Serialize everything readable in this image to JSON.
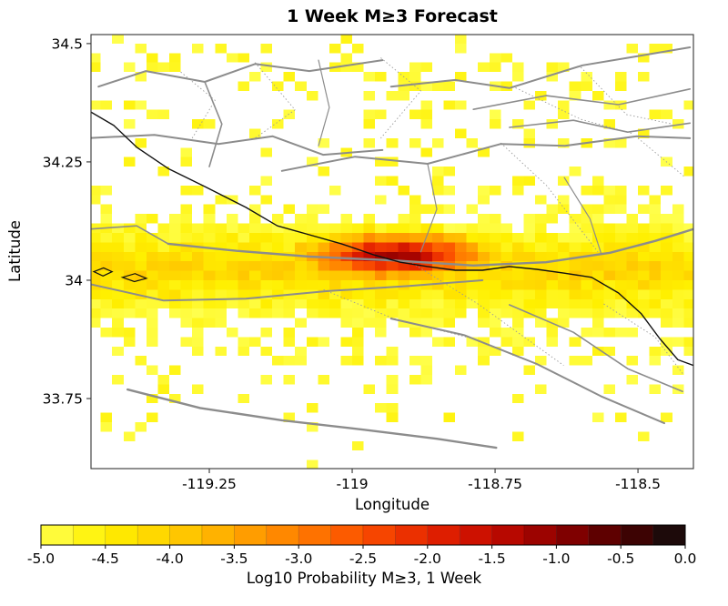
{
  "title": "1 Week M≥3 Forecast",
  "axes": {
    "xlabel": "Longitude",
    "ylabel": "Latitude",
    "xlim": [
      -119.457,
      -118.403
    ],
    "ylim": [
      33.602,
      34.519
    ],
    "x_tick_values": [
      -119.25,
      -119,
      -118.75,
      -118.5
    ],
    "x_tick_labels": [
      "-119.25",
      "-119",
      "-118.75",
      "-118.5"
    ],
    "y_tick_values": [
      34.5,
      34.25,
      34,
      33.75
    ],
    "y_tick_labels": [
      "34.5",
      "34.25",
      "34",
      "33.75"
    ]
  },
  "colorbar": {
    "label": "Log10 Probability M≥3, 1 Week",
    "range": [
      -5,
      0
    ],
    "segments": 20,
    "tick_values": [
      -5,
      -4.5,
      -4,
      -3.5,
      -3,
      -2.5,
      -2,
      -1.5,
      -1,
      -0.5,
      0
    ],
    "tick_labels": [
      "-5.0",
      "-4.5",
      "-4.0",
      "-3.5",
      "-3.0",
      "-2.5",
      "-2.0",
      "-1.5",
      "-1.0",
      "-0.5",
      "0.0"
    ],
    "stops": [
      [
        -5.0,
        "#ffff4d"
      ],
      [
        -4.5,
        "#fff000"
      ],
      [
        -4.0,
        "#ffd000"
      ],
      [
        -3.5,
        "#ffa800"
      ],
      [
        -3.0,
        "#ff7d00"
      ],
      [
        -2.5,
        "#fb4f00"
      ],
      [
        -2.0,
        "#e62500"
      ],
      [
        -1.5,
        "#c40a00"
      ],
      [
        -1.0,
        "#8f0000"
      ],
      [
        -0.5,
        "#4d0000"
      ],
      [
        0.0,
        "#0d0d0d"
      ]
    ]
  },
  "chart_data": {
    "type": "heatmap",
    "title": "1 Week M≥3 Forecast",
    "xlabel": "Longitude",
    "ylabel": "Latitude",
    "value_label": "Log10 Probability M≥3, 1 Week",
    "value_range": [
      -5,
      0
    ],
    "xlim": [
      -119.457,
      -118.403
    ],
    "ylim": [
      33.602,
      34.519
    ],
    "grid": {
      "lon0": -119.46,
      "lat0": 33.6,
      "cell_deg": 0.02,
      "ncols": 53,
      "nrows": 46
    },
    "seed": 1337,
    "hotspot": {
      "lon": -118.924,
      "lat": 34.052,
      "peak": -0.7,
      "radius_lon": 0.2,
      "radius_lat": 0.06,
      "falloff": 3.9
    },
    "band": {
      "lat": 34.02,
      "level": -4.05,
      "falloff": 9
    },
    "noise_amplitude": 0.55,
    "scatter_value_range": [
      -5.0,
      -4.6
    ],
    "scatter_zones": [
      {
        "lat_min": 34.33,
        "lat_max": 34.52,
        "prob": 0.17
      },
      {
        "lat_min": 34.2,
        "lat_max": 34.33,
        "prob": 0.13
      },
      {
        "lat_min": 34.1,
        "lat_max": 34.2,
        "prob": 0.2
      },
      {
        "lat_min": 33.92,
        "lat_max": 34.1,
        "prob": 0.45
      },
      {
        "lat_min": 33.82,
        "lat_max": 33.92,
        "prob": 0.32
      },
      {
        "lat_min": 33.7,
        "lat_max": 33.82,
        "prob": 0.11
      },
      {
        "lat_min": 33.6,
        "lat_max": 33.7,
        "prob": 0.045
      }
    ],
    "scatter_boosts": [
      {
        "lat_min": 34.28,
        "lat_max": 34.46,
        "lon_min": -118.98,
        "lon_max": -118.5,
        "prob": 0.13
      },
      {
        "lat_min": 34.1,
        "lat_max": 34.22,
        "lon_min": -118.75,
        "lon_max": -118.42,
        "prob": 0.12
      }
    ]
  },
  "map_layers": {
    "fault_color": "#8c8c8c",
    "dotted_color": "#9a9a9a",
    "coast_color": "#111111",
    "faults": [
      {
        "w": 2.0,
        "pts": [
          [
            -119.444,
            34.409
          ],
          [
            -119.361,
            34.442
          ],
          [
            -119.258,
            34.419
          ],
          [
            -119.17,
            34.457
          ],
          [
            -119.075,
            34.442
          ],
          [
            -118.947,
            34.465
          ]
        ]
      },
      {
        "w": 2.0,
        "pts": [
          [
            -118.932,
            34.409
          ],
          [
            -118.82,
            34.423
          ],
          [
            -118.725,
            34.406
          ],
          [
            -118.597,
            34.454
          ],
          [
            -118.502,
            34.473
          ],
          [
            -118.409,
            34.492
          ]
        ]
      },
      {
        "w": 1.6,
        "pts": [
          [
            -118.788,
            34.361
          ],
          [
            -118.661,
            34.39
          ],
          [
            -118.534,
            34.371
          ],
          [
            -118.409,
            34.404
          ]
        ]
      },
      {
        "w": 1.6,
        "pts": [
          [
            -118.725,
            34.323
          ],
          [
            -118.613,
            34.338
          ],
          [
            -118.518,
            34.313
          ],
          [
            -118.409,
            34.332
          ]
        ]
      },
      {
        "w": 2.0,
        "pts": [
          [
            -119.465,
            34.3
          ],
          [
            -119.346,
            34.307
          ],
          [
            -119.234,
            34.288
          ],
          [
            -119.139,
            34.304
          ],
          [
            -119.051,
            34.265
          ],
          [
            -118.947,
            34.275
          ]
        ]
      },
      {
        "w": 2.0,
        "pts": [
          [
            -119.123,
            34.231
          ],
          [
            -118.995,
            34.261
          ],
          [
            -118.868,
            34.246
          ],
          [
            -118.74,
            34.288
          ],
          [
            -118.628,
            34.284
          ],
          [
            -118.502,
            34.304
          ],
          [
            -118.409,
            34.3
          ]
        ]
      },
      {
        "w": 2.4,
        "pts": [
          [
            -119.322,
            34.077
          ],
          [
            -119.202,
            34.062
          ],
          [
            -119.075,
            34.05
          ],
          [
            -118.932,
            34.042
          ],
          [
            -118.788,
            34.031
          ],
          [
            -118.661,
            34.038
          ],
          [
            -118.549,
            34.058
          ],
          [
            -118.47,
            34.083
          ],
          [
            -118.403,
            34.108
          ]
        ]
      },
      {
        "w": 2.0,
        "pts": [
          [
            -119.46,
            33.992
          ],
          [
            -119.33,
            33.957
          ],
          [
            -119.186,
            33.961
          ],
          [
            -119.043,
            33.977
          ],
          [
            -118.9,
            33.988
          ],
          [
            -118.772,
            34.0
          ]
        ]
      },
      {
        "w": 2.0,
        "pts": [
          [
            -118.932,
            33.919
          ],
          [
            -118.804,
            33.884
          ],
          [
            -118.677,
            33.823
          ],
          [
            -118.565,
            33.755
          ],
          [
            -118.454,
            33.698
          ]
        ]
      },
      {
        "w": 1.6,
        "pts": [
          [
            -118.725,
            33.948
          ],
          [
            -118.613,
            33.89
          ],
          [
            -118.518,
            33.813
          ],
          [
            -118.422,
            33.765
          ]
        ]
      },
      {
        "w": 2.4,
        "pts": [
          [
            -119.393,
            33.769
          ],
          [
            -119.266,
            33.73
          ],
          [
            -119.123,
            33.704
          ],
          [
            -118.979,
            33.684
          ],
          [
            -118.852,
            33.665
          ],
          [
            -118.748,
            33.646
          ]
        ]
      },
      {
        "w": 1.6,
        "pts": [
          [
            -119.46,
            34.108
          ],
          [
            -119.377,
            34.115
          ],
          [
            -119.322,
            34.077
          ]
        ]
      },
      {
        "w": 1.2,
        "pts": [
          [
            -118.629,
            34.217
          ],
          [
            -118.584,
            34.13
          ],
          [
            -118.565,
            34.058
          ]
        ]
      },
      {
        "w": 1.2,
        "pts": [
          [
            -119.059,
            34.465
          ],
          [
            -119.04,
            34.365
          ],
          [
            -119.059,
            34.284
          ]
        ]
      },
      {
        "w": 1.6,
        "pts": [
          [
            -119.258,
            34.419
          ],
          [
            -119.228,
            34.33
          ],
          [
            -119.25,
            34.24
          ]
        ]
      },
      {
        "w": 1.2,
        "pts": [
          [
            -118.868,
            34.246
          ],
          [
            -118.852,
            34.15
          ],
          [
            -118.88,
            34.06
          ]
        ]
      }
    ],
    "dotted_boundaries": [
      {
        "pts": [
          [
            -119.17,
            34.46
          ],
          [
            -119.1,
            34.36
          ],
          [
            -119.17,
            34.3
          ]
        ]
      },
      {
        "pts": [
          [
            -118.95,
            34.47
          ],
          [
            -118.88,
            34.4
          ],
          [
            -118.95,
            34.3
          ]
        ]
      },
      {
        "pts": [
          [
            -118.72,
            34.41
          ],
          [
            -118.6,
            34.34
          ],
          [
            -118.51,
            34.31
          ]
        ]
      },
      {
        "pts": [
          [
            -118.6,
            34.45
          ],
          [
            -118.52,
            34.35
          ],
          [
            -118.44,
            34.33
          ]
        ]
      },
      {
        "pts": [
          [
            -118.74,
            34.29
          ],
          [
            -118.66,
            34.2
          ],
          [
            -118.57,
            34.06
          ]
        ]
      },
      {
        "pts": [
          [
            -118.9,
            34.04
          ],
          [
            -118.78,
            33.95
          ],
          [
            -118.63,
            33.82
          ]
        ]
      },
      {
        "pts": [
          [
            -119.05,
            33.98
          ],
          [
            -118.93,
            33.92
          ],
          [
            -118.8,
            33.88
          ]
        ]
      },
      {
        "pts": [
          [
            -118.5,
            34.3
          ],
          [
            -118.42,
            34.22
          ]
        ]
      },
      {
        "pts": [
          [
            -119.3,
            34.44
          ],
          [
            -119.24,
            34.38
          ],
          [
            -119.28,
            34.3
          ]
        ]
      },
      {
        "pts": [
          [
            -118.56,
            33.95
          ],
          [
            -118.47,
            33.88
          ],
          [
            -118.42,
            33.8
          ]
        ]
      }
    ],
    "coastline": [
      [
        -119.465,
        34.361
      ],
      [
        -119.417,
        34.327
      ],
      [
        -119.377,
        34.281
      ],
      [
        -119.322,
        34.236
      ],
      [
        -119.258,
        34.198
      ],
      [
        -119.186,
        34.154
      ],
      [
        -119.131,
        34.115
      ],
      [
        -119.075,
        34.096
      ],
      [
        -119.019,
        34.077
      ],
      [
        -118.963,
        34.054
      ],
      [
        -118.916,
        34.038
      ],
      [
        -118.868,
        34.029
      ],
      [
        -118.82,
        34.021
      ],
      [
        -118.772,
        34.021
      ],
      [
        -118.725,
        34.029
      ],
      [
        -118.677,
        34.023
      ],
      [
        -118.629,
        34.015
      ],
      [
        -118.581,
        34.006
      ],
      [
        -118.534,
        33.973
      ],
      [
        -118.494,
        33.929
      ],
      [
        -118.462,
        33.877
      ],
      [
        -118.43,
        33.832
      ],
      [
        -118.403,
        33.82
      ]
    ],
    "islands": [
      [
        [
          -119.452,
          34.018
        ],
        [
          -119.435,
          34.026
        ],
        [
          -119.42,
          34.018
        ],
        [
          -119.436,
          34.009
        ]
      ],
      [
        [
          -119.402,
          34.006
        ],
        [
          -119.38,
          34.014
        ],
        [
          -119.36,
          34.004
        ],
        [
          -119.381,
          33.997
        ]
      ]
    ]
  }
}
